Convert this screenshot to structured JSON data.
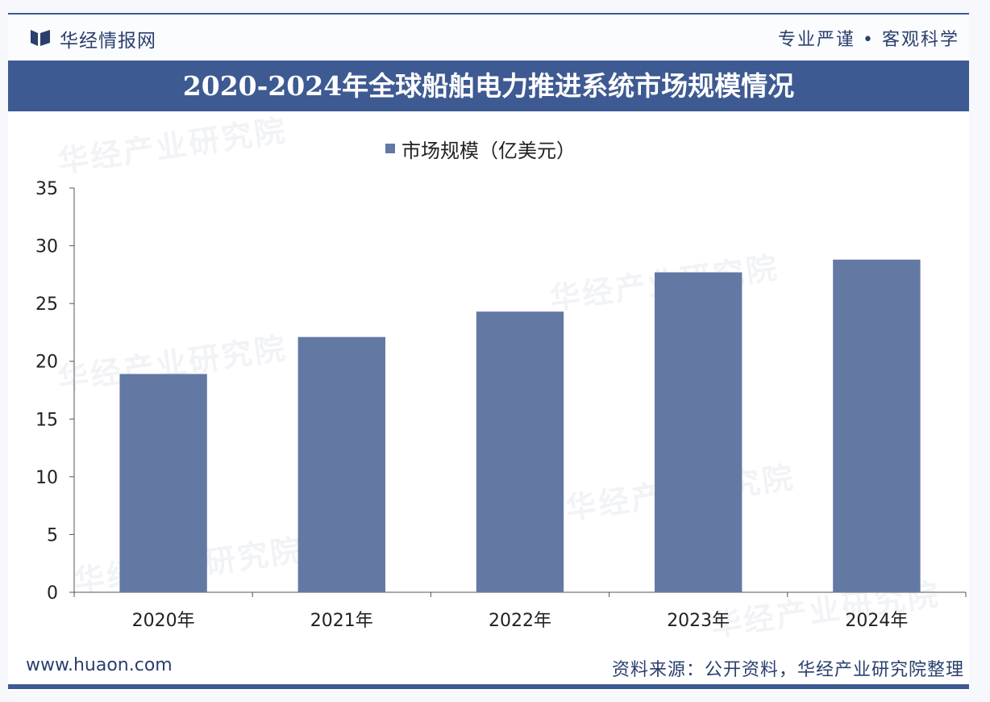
{
  "header": {
    "brand": "华经情报网",
    "slogan": "专业严谨 • 客观科学"
  },
  "watermark": "华经产业研究院",
  "footer": {
    "website": "www.huaon.com",
    "source": "资料来源：公开资料，华经产业研究院整理"
  },
  "colors": {
    "bar": "#6379a4",
    "title_band": "#3e5a92"
  },
  "chart_data": {
    "type": "bar",
    "title": "2020-2024年全球船舶电力推进系统市场规模情况",
    "categories": [
      "2020年",
      "2021年",
      "2022年",
      "2023年",
      "2024年"
    ],
    "series": [
      {
        "name": "市场规模（亿美元）",
        "values": [
          18.9,
          22.1,
          24.3,
          27.7,
          28.8
        ]
      }
    ],
    "ylim": [
      0,
      35
    ],
    "yticks": [
      0,
      5,
      10,
      15,
      20,
      25,
      30,
      35
    ],
    "grid": false,
    "legend_position": "top-center"
  }
}
